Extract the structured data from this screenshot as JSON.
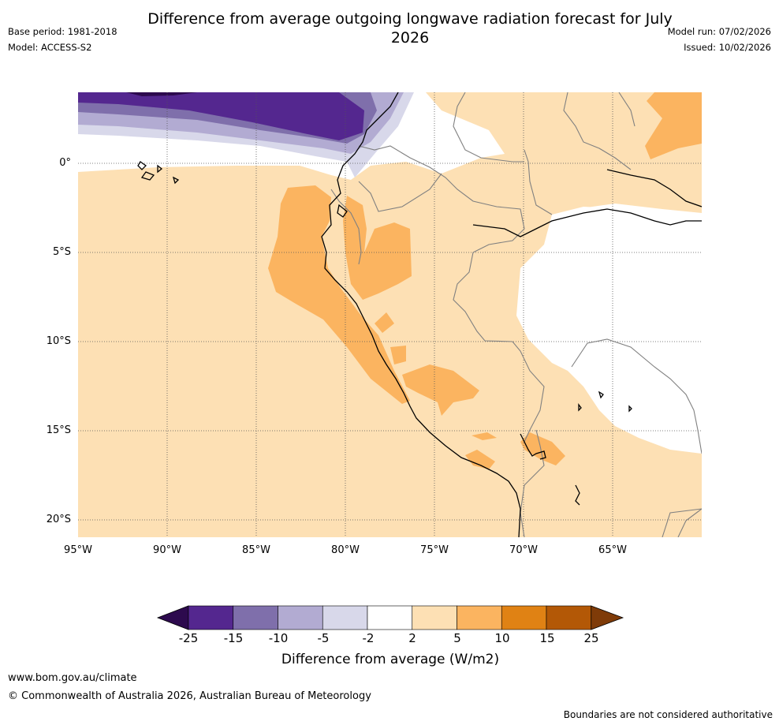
{
  "title": "Difference from average outgoing longwave radiation forecast for July 2026",
  "base_period": "Base period: 1981-2018",
  "model": "Model: ACCESS-S2",
  "model_run": "Model run: 07/02/2026",
  "issued": "Issued: 10/02/2026",
  "lat_labels": [
    "0°",
    "5°S",
    "10°S",
    "15°S",
    "20°S"
  ],
  "lon_labels": [
    "95°W",
    "90°W",
    "85°W",
    "80°W",
    "75°W",
    "70°W",
    "65°W"
  ],
  "colorbar": {
    "ticks": [
      "-25",
      "-15",
      "-10",
      "-5",
      "-2",
      "2",
      "5",
      "10",
      "15",
      "25"
    ],
    "colors": [
      "#2d0a4e",
      "#54278f",
      "#7f6fab",
      "#b2abd2",
      "#d8d8ea",
      "#ffffff",
      "#fde0b4",
      "#fbb460",
      "#e08214",
      "#b35806",
      "#7f3b08"
    ],
    "title": "Difference from average (W/m2)"
  },
  "footer": {
    "url": "www.bom.gov.au/climate",
    "copyright": "© Commonwealth of Australia 2026, Australian Bureau of Meteorology",
    "disclaimer": "Boundaries are not considered authoritative"
  },
  "icons": [
    "coastline",
    "country-boundaries",
    "gridlines"
  ]
}
